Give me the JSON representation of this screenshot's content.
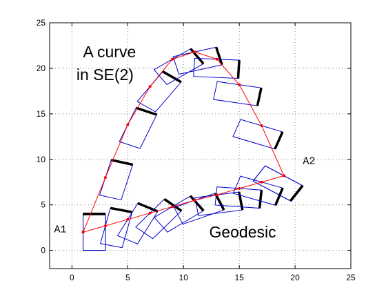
{
  "chart_data": {
    "type": "scatter",
    "xlim": [
      -2,
      25
    ],
    "ylim": [
      -2,
      25
    ],
    "x_ticks": [
      0,
      5,
      10,
      15,
      20,
      25
    ],
    "y_ticks": [
      0,
      5,
      10,
      15,
      20,
      25
    ],
    "x_tick_labels": [
      "0",
      "5",
      "10",
      "15",
      "20",
      "25"
    ],
    "y_tick_labels": [
      "0",
      "5",
      "10",
      "15",
      "20",
      "25"
    ],
    "grid": true,
    "grid_style": "dotted",
    "frame_size": [
      2,
      4
    ],
    "series": [
      {
        "label": "A curve in SE(2)",
        "points": [
          [
            1,
            2
          ],
          [
            3,
            8
          ],
          [
            5,
            13.8
          ],
          [
            7,
            18
          ],
          [
            9,
            21
          ],
          [
            11,
            21.8
          ],
          [
            13,
            21
          ],
          [
            15,
            18.2
          ],
          [
            17,
            13.7
          ],
          [
            19,
            8.2
          ]
        ],
        "angles": [
          0,
          -15,
          -22,
          -35,
          -55,
          -75,
          -93,
          -100,
          -110,
          -123
        ]
      },
      {
        "label": "Geodesic",
        "points": [
          [
            1,
            2
          ],
          [
            3,
            2.7
          ],
          [
            5,
            3.4
          ],
          [
            7,
            4.1
          ],
          [
            9,
            4.8
          ],
          [
            11,
            5.5
          ],
          [
            13,
            6.1
          ],
          [
            15,
            6.8
          ],
          [
            17,
            7.5
          ],
          [
            19,
            8.2
          ]
        ],
        "angles": [
          0,
          -13,
          -27,
          -40,
          -54,
          -67,
          -81,
          -95,
          -109,
          -123
        ]
      }
    ],
    "colors": {
      "path": "#ff0000",
      "marker": "#ff0000",
      "frame": "#0000cc",
      "edge": "#000000"
    },
    "annotations": [
      {
        "text": "A curve",
        "x": 1,
        "y": 21.2,
        "style": "big"
      },
      {
        "text": "in SE(2)",
        "x": 0.4,
        "y": 18.7,
        "style": "big"
      },
      {
        "text": "Geodesic",
        "x": 12.3,
        "y": 1.4,
        "style": "big"
      },
      {
        "text": "A1",
        "x": -1.6,
        "y": 2.0,
        "style": "mono"
      },
      {
        "text": "A2",
        "x": 20.7,
        "y": 9.5,
        "style": "mono"
      }
    ]
  }
}
